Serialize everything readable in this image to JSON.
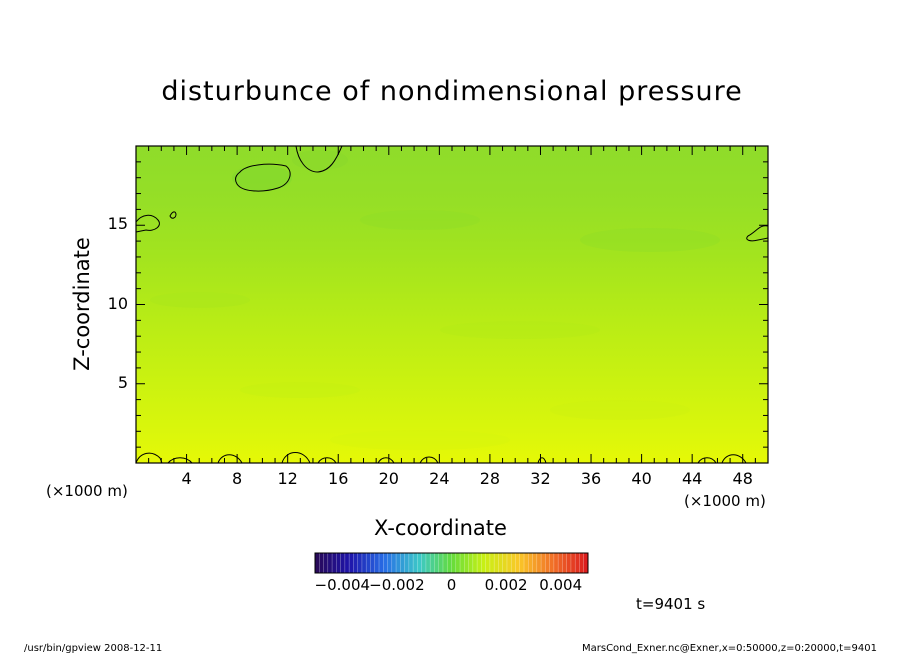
{
  "chart_data": {
    "type": "heatmap",
    "title": "disturbunce of nondimensional pressure",
    "xlabel": "X-coordinate",
    "ylabel": "Z-coordinate",
    "x_unit": "(×1000 m)",
    "y_unit": "(×1000 m)",
    "xlim": [
      0,
      50
    ],
    "ylim": [
      0,
      20
    ],
    "x_ticks": [
      "4",
      "8",
      "12",
      "16",
      "20",
      "24",
      "28",
      "32",
      "36",
      "40",
      "44",
      "48"
    ],
    "y_ticks": [
      "5",
      "10",
      "15"
    ],
    "x_tick_values": [
      4,
      8,
      12,
      16,
      20,
      24,
      28,
      32,
      36,
      40,
      44,
      48
    ],
    "y_tick_values": [
      5,
      10,
      15
    ],
    "value_range": [
      -0.005,
      0.005
    ],
    "colorbar_ticks": [
      "−0.004",
      "−0.002",
      "0",
      "0.002",
      "0.004"
    ],
    "colorbar_tick_values": [
      -0.004,
      -0.002,
      0,
      0.002,
      0.004
    ],
    "field_profile": [
      {
        "z": 0,
        "value": 0.0016
      },
      {
        "z": 2,
        "value": 0.0014
      },
      {
        "z": 5,
        "value": 0.0011
      },
      {
        "z": 8,
        "value": 0.0008
      },
      {
        "z": 11,
        "value": 0.0005
      },
      {
        "z": 14,
        "value": 0.0003
      },
      {
        "z": 17,
        "value": 0.0002
      },
      {
        "z": 20,
        "value": 0.0002
      }
    ],
    "time_label": "t=9401 s"
  },
  "footer": {
    "left": "/usr/bin/gpview   2008-12-11",
    "right": "MarsCond_Exner.nc@Exner,x=0:50000,z=0:20000,t=9401"
  },
  "colors": {
    "plot_green": "#88dd22",
    "plot_yellow": "#ddf70a"
  }
}
